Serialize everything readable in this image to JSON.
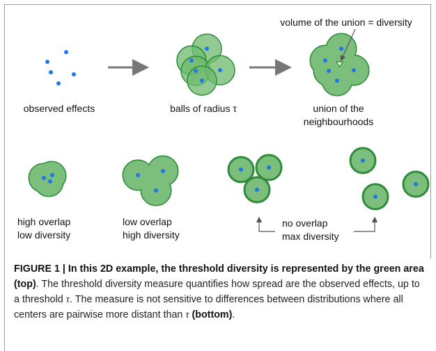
{
  "figure": {
    "annotation": "volume of the union = diversity",
    "top_labels": [
      "observed effects",
      "balls of radius τ",
      [
        "union of the",
        "neighbourhoods"
      ]
    ],
    "bottom_labels": [
      [
        "high overlap",
        "low diversity"
      ],
      [
        "low overlap",
        "high diversity"
      ],
      [
        "no overlap",
        "max diversity"
      ]
    ]
  },
  "caption": {
    "bold": "FIGURE 1 | In this 2D example, the threshold diversity is represented by the green area (top)",
    "text_1": ". The threshold diversity measure quantifies how spread are the observed effects, up to a threshold ",
    "tau_1": "τ",
    "text_2": ". The measure is not sensitive to differences between distributions where all centers are pairwise more distant than ",
    "tau_2": "τ",
    "bold_2": "(bottom)",
    "end": "."
  }
}
